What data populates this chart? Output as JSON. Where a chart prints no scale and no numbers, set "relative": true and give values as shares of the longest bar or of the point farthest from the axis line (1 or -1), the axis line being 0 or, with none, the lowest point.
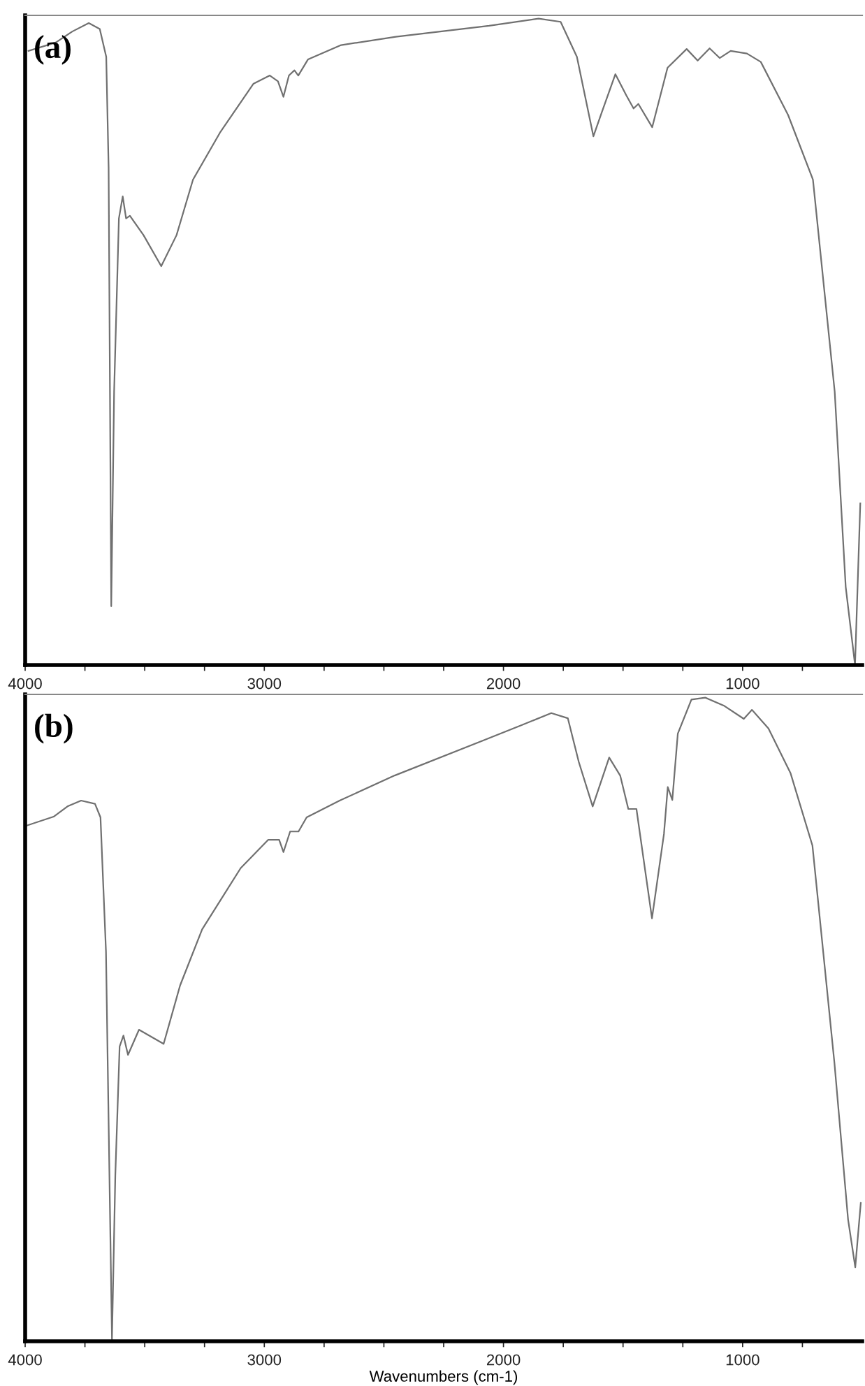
{
  "chart_data": [
    {
      "type": "line",
      "relative": true,
      "annotations": [
        "(a)"
      ],
      "grid": false,
      "legend": false,
      "tick_labels": "x",
      "xlim": [
        4000,
        500
      ],
      "xticks": [
        4000,
        {
          "value": 3750,
          "label": null
        },
        {
          "value": 3500,
          "label": null
        },
        {
          "value": 3250,
          "label": null
        },
        3000,
        {
          "value": 2750,
          "label": null
        },
        {
          "value": 2500,
          "label": null
        },
        {
          "value": 2250,
          "label": null
        },
        2000,
        {
          "value": 1750,
          "label": null
        },
        {
          "value": 1500,
          "label": null
        },
        {
          "value": 1250,
          "label": null
        },
        1000,
        {
          "value": 750,
          "label": null
        }
      ],
      "series": [
        {
          "color": "#707070",
          "x": [
            3986,
            3872,
            3803,
            3734,
            3688,
            3661,
            3651,
            3640,
            3628,
            3608,
            3592,
            3578,
            3562,
            3505,
            3431,
            3367,
            3298,
            3183,
            3046,
            2977,
            2943,
            2920,
            2897,
            2874,
            2858,
            2817,
            2679,
            2450,
            2060,
            1853,
            1761,
            1693,
            1624,
            1589,
            1532,
            1486,
            1456,
            1436,
            1378,
            1314,
            1234,
            1188,
            1138,
            1096,
            1050,
            982,
            924,
            810,
            706,
            615,
            569,
            530,
            508
          ],
          "values": [
            0.95,
            0.963,
            0.98,
            0.993,
            0.984,
            0.941,
            0.769,
            0.091,
            0.423,
            0.691,
            0.725,
            0.691,
            0.695,
            0.665,
            0.617,
            0.665,
            0.751,
            0.825,
            0.899,
            0.912,
            0.903,
            0.879,
            0.912,
            0.92,
            0.912,
            0.937,
            0.959,
            0.972,
            0.989,
            1.0,
            0.995,
            0.941,
            0.818,
            0.855,
            0.914,
            0.881,
            0.861,
            0.868,
            0.832,
            0.924,
            0.953,
            0.935,
            0.954,
            0.939,
            0.95,
            0.946,
            0.933,
            0.851,
            0.751,
            0.423,
            0.121,
            0.0,
            0.25
          ]
        }
      ]
    },
    {
      "type": "line",
      "relative": true,
      "annotations": [
        "(b)"
      ],
      "xlabel": "Wavenumbers (cm-1)",
      "grid": false,
      "legend": false,
      "tick_labels": "x",
      "xlim": [
        4000,
        500
      ],
      "xticks": [
        4000,
        {
          "value": 3750,
          "label": null
        },
        {
          "value": 3500,
          "label": null
        },
        {
          "value": 3250,
          "label": null
        },
        3000,
        {
          "value": 2750,
          "label": null
        },
        {
          "value": 2500,
          "label": null
        },
        {
          "value": 2250,
          "label": null
        },
        2000,
        {
          "value": 1750,
          "label": null
        },
        {
          "value": 1500,
          "label": null
        },
        {
          "value": 1250,
          "label": null
        },
        1000,
        {
          "value": 750,
          "label": null
        }
      ],
      "series": [
        {
          "color": "#707070",
          "x": [
            3995,
            3881,
            3823,
            3766,
            3708,
            3685,
            3662,
            3637,
            3623,
            3605,
            3589,
            3570,
            3524,
            3421,
            3352,
            3260,
            3099,
            2984,
            2938,
            2920,
            2892,
            2857,
            2823,
            2685,
            2455,
            2087,
            1926,
            1800,
            1731,
            1685,
            1627,
            1558,
            1512,
            1478,
            1444,
            1379,
            1329,
            1313,
            1294,
            1271,
            1214,
            1156,
            1076,
            995,
            961,
            892,
            800,
            708,
            616,
            559,
            529,
            506
          ],
          "values": [
            0.801,
            0.815,
            0.831,
            0.84,
            0.835,
            0.814,
            0.605,
            0.003,
            0.258,
            0.458,
            0.475,
            0.445,
            0.484,
            0.462,
            0.553,
            0.64,
            0.735,
            0.779,
            0.779,
            0.76,
            0.792,
            0.792,
            0.814,
            0.84,
            0.879,
            0.933,
            0.957,
            0.976,
            0.968,
            0.9,
            0.831,
            0.907,
            0.879,
            0.827,
            0.827,
            0.657,
            0.788,
            0.861,
            0.841,
            0.944,
            0.997,
            1.0,
            0.987,
            0.967,
            0.981,
            0.952,
            0.883,
            0.77,
            0.432,
            0.189,
            0.115,
            0.215
          ]
        }
      ]
    }
  ]
}
